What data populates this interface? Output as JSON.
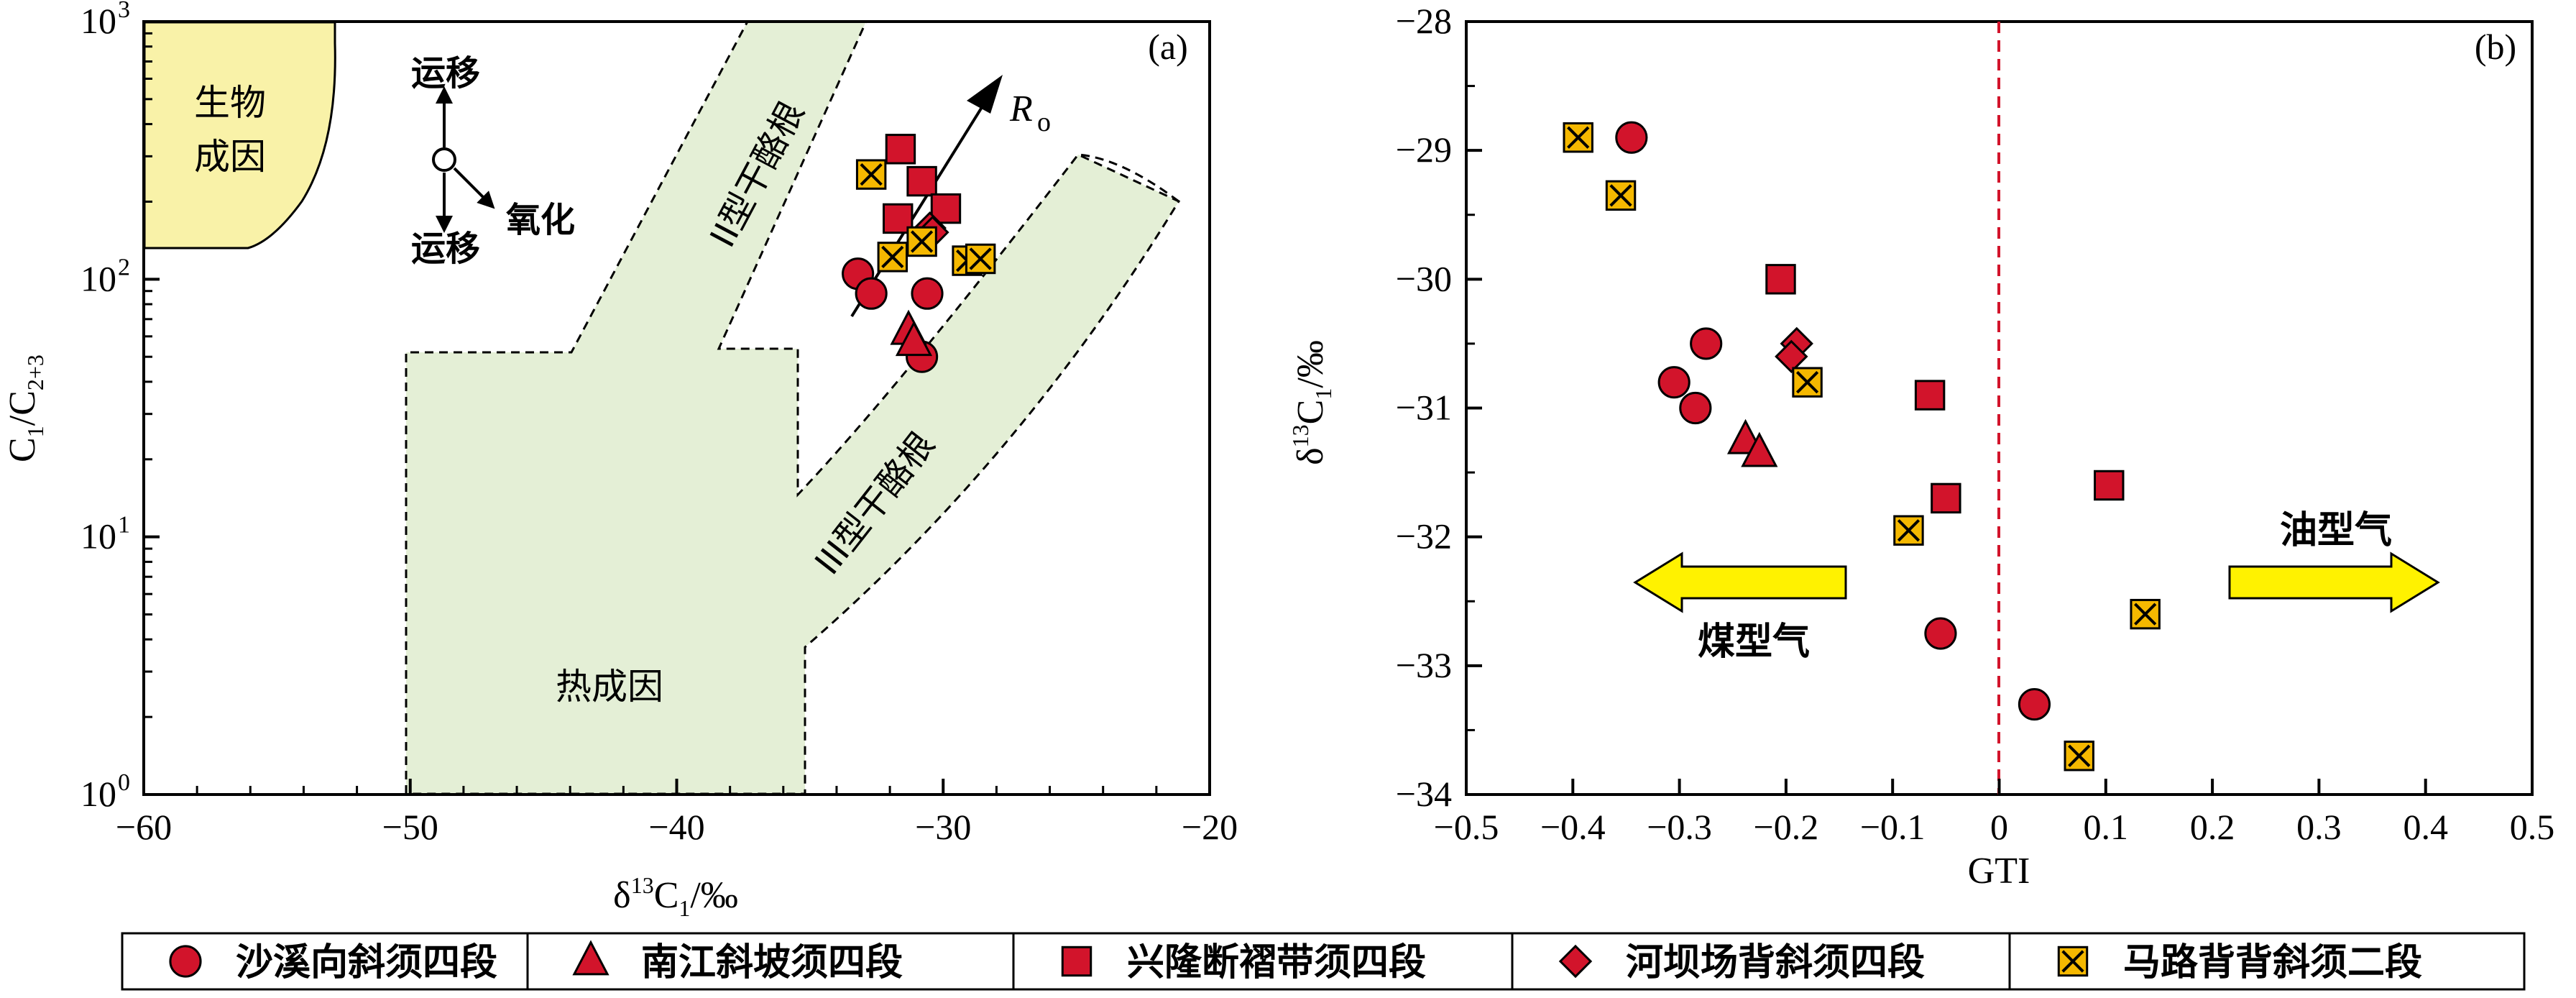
{
  "colors": {
    "marker_red": "#d2142b",
    "marker_yellow": "#f5b800",
    "zone_green": "#e4efd6",
    "zone_yellow": "#f9f2a8",
    "arrow_yellow": "#fff200",
    "divider_red": "#d2142b",
    "label_red": "#d2142b"
  },
  "legend": [
    {
      "label": "沙溪向斜须四段",
      "marker": "circle"
    },
    {
      "label": "南江斜坡须四段",
      "marker": "triangle"
    },
    {
      "label": "兴隆断褶带须四段",
      "marker": "square"
    },
    {
      "label": "河坝场背斜须四段",
      "marker": "diamond"
    },
    {
      "label": "马路背背斜须二段",
      "marker": "xsquare"
    }
  ],
  "chart_data": [
    {
      "type": "scatter",
      "panel_label": "(a)",
      "xlabel": "δ13C1/‰",
      "ylabel": "C1/C2+3",
      "xlim": [
        -60,
        -20
      ],
      "ylim": [
        1,
        1000
      ],
      "yscale": "log",
      "x_ticks": [
        "−60",
        "−50",
        "−40",
        "−30",
        "−20"
      ],
      "y_ticks": [
        "10",
        "10",
        "10",
        "10"
      ],
      "y_tick_exponents": [
        "0",
        "1",
        "2",
        "3"
      ],
      "zones": [
        {
          "label_line1": "生物",
          "label_line2": "成因"
        },
        {
          "label": "热成因"
        },
        {
          "label": "II型干酪根"
        },
        {
          "label": "III型干酪根"
        }
      ],
      "annotations": {
        "migration_up": "运移",
        "migration_down": "运移",
        "oxidation": "氧化",
        "maturity_symbol": "R",
        "maturity_subscript": "o"
      },
      "series": [
        {
          "marker": "circle",
          "points": [
            [
              -33.2,
              105
            ],
            [
              -32.7,
              88
            ],
            [
              -30.6,
              88
            ],
            [
              -30.8,
              50
            ]
          ]
        },
        {
          "marker": "triangle",
          "points": [
            [
              -31.3,
              63
            ],
            [
              -31.1,
              57
            ]
          ]
        },
        {
          "marker": "square",
          "points": [
            [
              -31.6,
              320
            ],
            [
              -30.8,
              240
            ],
            [
              -29.9,
              188
            ],
            [
              -31.7,
              172
            ]
          ]
        },
        {
          "marker": "diamond",
          "points": [
            [
              -30.5,
              158
            ],
            [
              -30.4,
              152
            ]
          ]
        },
        {
          "marker": "xsquare",
          "points": [
            [
              -32.7,
              255
            ],
            [
              -31.9,
              122
            ],
            [
              -30.8,
              140
            ],
            [
              -29.1,
              118
            ],
            [
              -28.6,
              120
            ]
          ]
        }
      ]
    },
    {
      "type": "scatter",
      "panel_label": "(b)",
      "xlabel": "GTI",
      "ylabel": "δ13C1/‰",
      "xlim": [
        -0.5,
        0.5
      ],
      "ylim": [
        -34,
        -28
      ],
      "x_ticks": [
        "−0.5",
        "−0.4",
        "−0.3",
        "−0.2",
        "−0.1",
        "0",
        "0.1",
        "0.2",
        "0.3",
        "0.4",
        "0.5"
      ],
      "y_ticks": [
        "−28",
        "−29",
        "−30",
        "−31",
        "−32",
        "−33",
        "−34"
      ],
      "divider_x": 0,
      "labels": {
        "coal_type": "煤型气",
        "oil_type": "油型气"
      },
      "series": [
        {
          "marker": "circle",
          "points": [
            [
              -0.345,
              -28.9
            ],
            [
              -0.275,
              -30.5
            ],
            [
              -0.305,
              -30.8
            ],
            [
              -0.285,
              -31.0
            ],
            [
              -0.055,
              -32.75
            ],
            [
              0.033,
              -33.3
            ]
          ]
        },
        {
          "marker": "triangle",
          "points": [
            [
              -0.238,
              -31.25
            ],
            [
              -0.225,
              -31.35
            ]
          ]
        },
        {
          "marker": "square",
          "points": [
            [
              -0.205,
              -30.0
            ],
            [
              -0.065,
              -30.9
            ],
            [
              -0.05,
              -31.7
            ],
            [
              0.103,
              -31.6
            ]
          ]
        },
        {
          "marker": "diamond",
          "points": [
            [
              -0.19,
              -30.5
            ],
            [
              -0.195,
              -30.6
            ]
          ]
        },
        {
          "marker": "xsquare",
          "points": [
            [
              -0.395,
              -28.9
            ],
            [
              -0.355,
              -29.35
            ],
            [
              -0.18,
              -30.8
            ],
            [
              -0.085,
              -31.95
            ],
            [
              0.137,
              -32.6
            ],
            [
              0.075,
              -33.7
            ]
          ]
        }
      ]
    }
  ]
}
